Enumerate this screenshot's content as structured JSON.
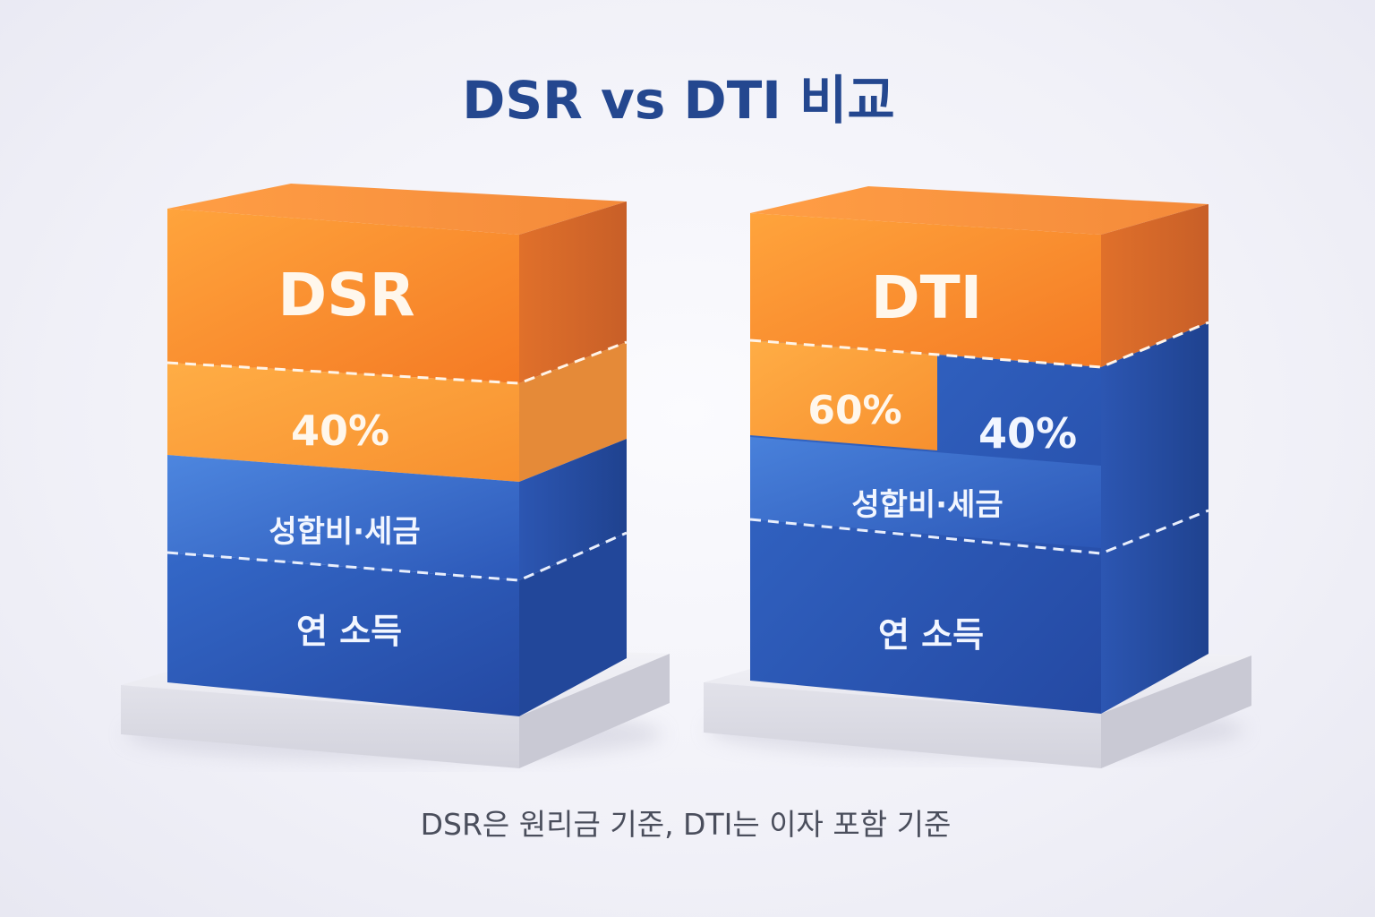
{
  "title": "DSR vs DTI 비교",
  "caption": "DSR은 원리금 기준, DTI는 이자 포함 기준",
  "colors": {
    "title": "#24478f",
    "orange": "#f6932f",
    "blue": "#2f5fc0",
    "caption": "#4a4e5c"
  },
  "dsr_block": {
    "name": "DSR",
    "percent": "40%",
    "middle_label": "성합비·세금",
    "bottom_label": "연 소득"
  },
  "dti_block": {
    "name": "DTI",
    "percent_orange": "60%",
    "percent_blue": "40%",
    "middle_label": "성합비·세금",
    "bottom_label": "연 소득"
  }
}
